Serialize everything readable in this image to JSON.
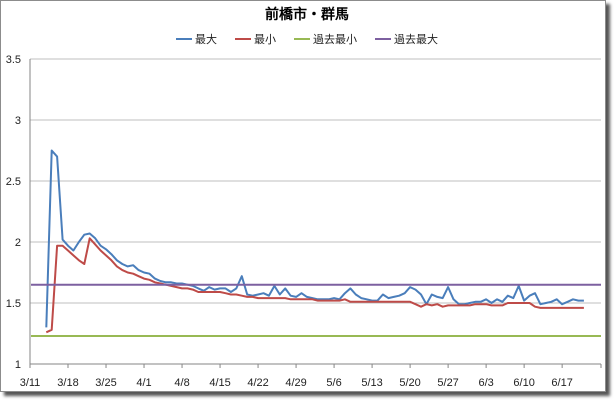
{
  "chart_data": {
    "type": "line",
    "title": "前橋市・群馬",
    "xlabel": "",
    "ylabel": "",
    "ylim": [
      1,
      3.5
    ],
    "yticks": [
      "1",
      "1.5",
      "2",
      "2.5",
      "3",
      "3.5"
    ],
    "xticks": [
      "3/11",
      "3/18",
      "3/25",
      "4/1",
      "4/8",
      "4/15",
      "4/22",
      "4/29",
      "5/6",
      "5/13",
      "5/20",
      "5/27",
      "6/3",
      "6/10",
      "6/17"
    ],
    "grid": "horizontal",
    "legend_position": "top",
    "series": [
      {
        "name": "最大",
        "color": "#4a7ebb",
        "points": [
          [
            3,
            1.3
          ],
          [
            4,
            2.75
          ],
          [
            5,
            2.7
          ],
          [
            6,
            2.02
          ],
          [
            7,
            1.97
          ],
          [
            8,
            1.93
          ],
          [
            9,
            2.0
          ],
          [
            10,
            2.06
          ],
          [
            11,
            2.07
          ],
          [
            12,
            2.03
          ],
          [
            13,
            1.97
          ],
          [
            14,
            1.94
          ],
          [
            15,
            1.9
          ],
          [
            16,
            1.85
          ],
          [
            17,
            1.82
          ],
          [
            18,
            1.8
          ],
          [
            19,
            1.81
          ],
          [
            20,
            1.77
          ],
          [
            21,
            1.75
          ],
          [
            22,
            1.74
          ],
          [
            23,
            1.7
          ],
          [
            24,
            1.68
          ],
          [
            25,
            1.67
          ],
          [
            26,
            1.67
          ],
          [
            27,
            1.66
          ],
          [
            28,
            1.66
          ],
          [
            29,
            1.65
          ],
          [
            30,
            1.64
          ],
          [
            31,
            1.62
          ],
          [
            32,
            1.6
          ],
          [
            33,
            1.63
          ],
          [
            34,
            1.61
          ],
          [
            35,
            1.62
          ],
          [
            36,
            1.62
          ],
          [
            37,
            1.59
          ],
          [
            38,
            1.62
          ],
          [
            39,
            1.72
          ],
          [
            40,
            1.57
          ],
          [
            41,
            1.56
          ],
          [
            42,
            1.57
          ],
          [
            43,
            1.58
          ],
          [
            44,
            1.56
          ],
          [
            45,
            1.64
          ],
          [
            46,
            1.57
          ],
          [
            47,
            1.62
          ],
          [
            48,
            1.56
          ],
          [
            49,
            1.55
          ],
          [
            50,
            1.58
          ],
          [
            51,
            1.55
          ],
          [
            52,
            1.54
          ],
          [
            53,
            1.53
          ],
          [
            54,
            1.53
          ],
          [
            55,
            1.53
          ],
          [
            56,
            1.54
          ],
          [
            57,
            1.53
          ],
          [
            58,
            1.58
          ],
          [
            59,
            1.62
          ],
          [
            60,
            1.57
          ],
          [
            61,
            1.54
          ],
          [
            62,
            1.53
          ],
          [
            63,
            1.52
          ],
          [
            64,
            1.52
          ],
          [
            65,
            1.57
          ],
          [
            66,
            1.54
          ],
          [
            67,
            1.55
          ],
          [
            68,
            1.56
          ],
          [
            69,
            1.58
          ],
          [
            70,
            1.63
          ],
          [
            71,
            1.61
          ],
          [
            72,
            1.57
          ],
          [
            73,
            1.49
          ],
          [
            74,
            1.57
          ],
          [
            75,
            1.55
          ],
          [
            76,
            1.54
          ],
          [
            77,
            1.63
          ],
          [
            78,
            1.53
          ],
          [
            79,
            1.49
          ],
          [
            80,
            1.49
          ],
          [
            81,
            1.5
          ],
          [
            82,
            1.51
          ],
          [
            83,
            1.51
          ],
          [
            84,
            1.53
          ],
          [
            85,
            1.5
          ],
          [
            86,
            1.53
          ],
          [
            87,
            1.51
          ],
          [
            88,
            1.56
          ],
          [
            89,
            1.54
          ],
          [
            90,
            1.64
          ],
          [
            91,
            1.52
          ],
          [
            92,
            1.56
          ],
          [
            93,
            1.58
          ],
          [
            94,
            1.49
          ],
          [
            95,
            1.5
          ],
          [
            96,
            1.51
          ],
          [
            97,
            1.53
          ],
          [
            98,
            1.49
          ],
          [
            99,
            1.51
          ],
          [
            100,
            1.53
          ],
          [
            101,
            1.52
          ],
          [
            102,
            1.52
          ]
        ]
      },
      {
        "name": "最小",
        "color": "#be4b48",
        "points": [
          [
            3,
            1.26
          ],
          [
            4,
            1.28
          ],
          [
            5,
            1.97
          ],
          [
            6,
            1.97
          ],
          [
            7,
            1.93
          ],
          [
            8,
            1.89
          ],
          [
            9,
            1.85
          ],
          [
            10,
            1.82
          ],
          [
            11,
            2.03
          ],
          [
            12,
            1.98
          ],
          [
            13,
            1.93
          ],
          [
            14,
            1.89
          ],
          [
            15,
            1.85
          ],
          [
            16,
            1.8
          ],
          [
            17,
            1.77
          ],
          [
            18,
            1.75
          ],
          [
            19,
            1.74
          ],
          [
            20,
            1.72
          ],
          [
            21,
            1.7
          ],
          [
            22,
            1.69
          ],
          [
            23,
            1.67
          ],
          [
            24,
            1.66
          ],
          [
            25,
            1.65
          ],
          [
            26,
            1.64
          ],
          [
            27,
            1.63
          ],
          [
            28,
            1.62
          ],
          [
            29,
            1.62
          ],
          [
            30,
            1.61
          ],
          [
            31,
            1.59
          ],
          [
            32,
            1.59
          ],
          [
            33,
            1.59
          ],
          [
            34,
            1.59
          ],
          [
            35,
            1.59
          ],
          [
            36,
            1.58
          ],
          [
            37,
            1.57
          ],
          [
            38,
            1.57
          ],
          [
            39,
            1.56
          ],
          [
            40,
            1.55
          ],
          [
            41,
            1.55
          ],
          [
            42,
            1.54
          ],
          [
            43,
            1.54
          ],
          [
            44,
            1.54
          ],
          [
            45,
            1.54
          ],
          [
            46,
            1.54
          ],
          [
            47,
            1.54
          ],
          [
            48,
            1.53
          ],
          [
            49,
            1.53
          ],
          [
            50,
            1.53
          ],
          [
            51,
            1.53
          ],
          [
            52,
            1.53
          ],
          [
            53,
            1.52
          ],
          [
            54,
            1.52
          ],
          [
            55,
            1.52
          ],
          [
            56,
            1.52
          ],
          [
            57,
            1.52
          ],
          [
            58,
            1.53
          ],
          [
            59,
            1.51
          ],
          [
            60,
            1.51
          ],
          [
            61,
            1.51
          ],
          [
            62,
            1.51
          ],
          [
            63,
            1.51
          ],
          [
            64,
            1.51
          ],
          [
            65,
            1.51
          ],
          [
            66,
            1.51
          ],
          [
            67,
            1.51
          ],
          [
            68,
            1.51
          ],
          [
            69,
            1.51
          ],
          [
            70,
            1.51
          ],
          [
            71,
            1.49
          ],
          [
            72,
            1.47
          ],
          [
            73,
            1.49
          ],
          [
            74,
            1.48
          ],
          [
            75,
            1.49
          ],
          [
            76,
            1.47
          ],
          [
            77,
            1.48
          ],
          [
            78,
            1.48
          ],
          [
            79,
            1.48
          ],
          [
            80,
            1.48
          ],
          [
            81,
            1.48
          ],
          [
            82,
            1.49
          ],
          [
            83,
            1.49
          ],
          [
            84,
            1.49
          ],
          [
            85,
            1.48
          ],
          [
            86,
            1.48
          ],
          [
            87,
            1.48
          ],
          [
            88,
            1.5
          ],
          [
            89,
            1.5
          ],
          [
            90,
            1.5
          ],
          [
            91,
            1.5
          ],
          [
            92,
            1.5
          ],
          [
            93,
            1.47
          ],
          [
            94,
            1.46
          ],
          [
            95,
            1.46
          ],
          [
            96,
            1.46
          ],
          [
            97,
            1.46
          ],
          [
            98,
            1.46
          ],
          [
            99,
            1.46
          ],
          [
            100,
            1.46
          ],
          [
            101,
            1.46
          ],
          [
            102,
            1.46
          ]
        ]
      },
      {
        "name": "過去最小",
        "color": "#98b954",
        "constant": 1.23
      },
      {
        "name": "過去最大",
        "color": "#7d60a0",
        "constant": 1.65
      }
    ],
    "x_day_offset_note_excluded": true
  },
  "legend": [
    {
      "label": "最大",
      "color": "#4a7ebb"
    },
    {
      "label": "最小",
      "color": "#be4b48"
    },
    {
      "label": "過去最小",
      "color": "#98b954"
    },
    {
      "label": "過去最大",
      "color": "#7d60a0"
    }
  ]
}
